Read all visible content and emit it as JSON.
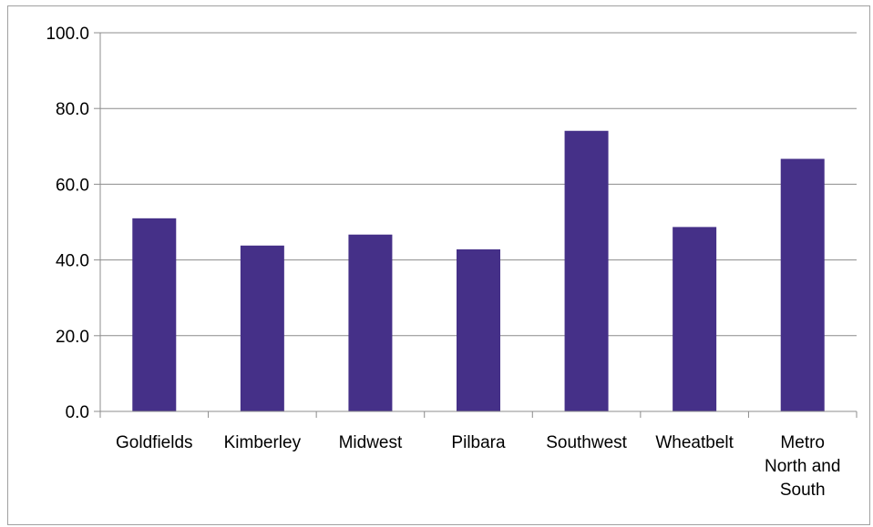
{
  "chart_data": {
    "type": "bar",
    "categories": [
      "Goldfields",
      "Kimberley",
      "Midwest",
      "Pilbara",
      "Southwest",
      "Wheatbelt",
      "Metro North and South"
    ],
    "category_label_lines": [
      [
        "Goldfields"
      ],
      [
        "Kimberley"
      ],
      [
        "Midwest"
      ],
      [
        "Pilbara"
      ],
      [
        "Southwest"
      ],
      [
        "Wheatbelt"
      ],
      [
        "Metro",
        "North and",
        "South"
      ]
    ],
    "values": [
      51.0,
      43.8,
      46.7,
      42.8,
      74.1,
      48.7,
      66.7
    ],
    "ylim": [
      0,
      100
    ],
    "yticks": [
      "0.0",
      "20.0",
      "40.0",
      "60.0",
      "80.0",
      "100.0"
    ],
    "grid": true,
    "legend": "none",
    "bar_color": "#453088",
    "title": "",
    "xlabel": "",
    "ylabel": ""
  }
}
